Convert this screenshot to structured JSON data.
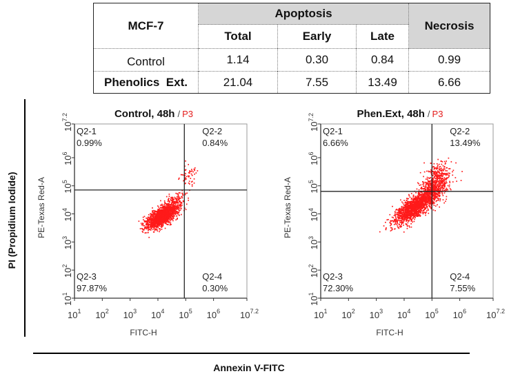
{
  "table": {
    "cell_line": "MCF-7",
    "apoptosis_header": "Apoptosis",
    "necrosis_header": "Necrosis",
    "sub_headers": [
      "Total",
      "Early",
      "Late"
    ],
    "rows": [
      {
        "label": "Control",
        "total": "1.14",
        "early": "0.30",
        "late": "0.84",
        "necrosis": "0.99"
      },
      {
        "label": "Phenolics  Ext.",
        "total": "21.04",
        "early": "7.55",
        "late": "13.49",
        "necrosis": "6.66"
      }
    ]
  },
  "figure": {
    "y_axis_title": "PI (Propidium Iodide)",
    "x_axis_title": "Annexin V-FITC",
    "colors": {
      "dots": "#ff1a1a",
      "gate_label": "#e41b1b",
      "axes": "#333333"
    }
  },
  "chart_data": [
    {
      "type": "scatter",
      "title": "Control, 48h",
      "gate_label": "P3",
      "gate_separator": "/",
      "xlabel": "FITC-H",
      "ylabel": "PE-Texas Red-A",
      "x_scale": "log10",
      "y_scale": "log10",
      "xlim_exponent": [
        1,
        7.2
      ],
      "ylim_exponent": [
        1,
        7.2
      ],
      "x_ticks": [
        {
          "base": "10",
          "exp": "1"
        },
        {
          "base": "10",
          "exp": "2"
        },
        {
          "base": "10",
          "exp": "3"
        },
        {
          "base": "10",
          "exp": "4"
        },
        {
          "base": "10",
          "exp": "5"
        },
        {
          "base": "10",
          "exp": "6"
        },
        {
          "base": "10",
          "exp": "7.2"
        }
      ],
      "y_ticks": [
        {
          "base": "10",
          "exp": "1"
        },
        {
          "base": "10",
          "exp": "2"
        },
        {
          "base": "10",
          "exp": "3"
        },
        {
          "base": "10",
          "exp": "4"
        },
        {
          "base": "10",
          "exp": "5"
        },
        {
          "base": "10",
          "exp": "6"
        },
        {
          "base": "10",
          "exp": "7.2"
        }
      ],
      "gate_x_exponent": 4.95,
      "gate_y_exponent": 4.85,
      "quadrants": [
        {
          "id": "Q2-1",
          "percent": "0.99%",
          "position": "top-left"
        },
        {
          "id": "Q2-2",
          "percent": "0.84%",
          "position": "top-right"
        },
        {
          "id": "Q2-3",
          "percent": "97.87%",
          "position": "bottom-left"
        },
        {
          "id": "Q2-4",
          "percent": "0.30%",
          "position": "bottom-right"
        }
      ],
      "populations": [
        {
          "cx_exp": 4.15,
          "cy_exp": 3.95,
          "sx": 0.28,
          "sy": 0.22,
          "rho": 0.7,
          "n": 1700
        },
        {
          "cx_exp": 5.05,
          "cy_exp": 5.35,
          "sx": 0.17,
          "sy": 0.22,
          "rho": 0.2,
          "n": 55
        },
        {
          "cx_exp": 4.55,
          "cy_exp": 4.45,
          "sx": 0.22,
          "sy": 0.2,
          "rho": 0.6,
          "n": 110
        }
      ],
      "seed": 17
    },
    {
      "type": "scatter",
      "title": "Phen.Ext, 48h",
      "gate_label": "P3",
      "gate_separator": "/",
      "xlabel": "FITC-H",
      "ylabel": "PE-Texas Red-A",
      "x_scale": "log10",
      "y_scale": "log10",
      "xlim_exponent": [
        1,
        7.2
      ],
      "ylim_exponent": [
        1,
        7.2
      ],
      "x_ticks": [
        {
          "base": "10",
          "exp": "1"
        },
        {
          "base": "10",
          "exp": "2"
        },
        {
          "base": "10",
          "exp": "3"
        },
        {
          "base": "10",
          "exp": "4"
        },
        {
          "base": "10",
          "exp": "5"
        },
        {
          "base": "10",
          "exp": "6"
        },
        {
          "base": "10",
          "exp": "7.2"
        }
      ],
      "y_ticks": [
        {
          "base": "10",
          "exp": "1"
        },
        {
          "base": "10",
          "exp": "2"
        },
        {
          "base": "10",
          "exp": "3"
        },
        {
          "base": "10",
          "exp": "4"
        },
        {
          "base": "10",
          "exp": "5"
        },
        {
          "base": "10",
          "exp": "6"
        },
        {
          "base": "10",
          "exp": "7.2"
        }
      ],
      "gate_x_exponent": 5.0,
      "gate_y_exponent": 4.8,
      "quadrants": [
        {
          "id": "Q2-1",
          "percent": "6.66%",
          "position": "top-left"
        },
        {
          "id": "Q2-2",
          "percent": "13.49%",
          "position": "top-right"
        },
        {
          "id": "Q2-3",
          "percent": "72.30%",
          "position": "bottom-left"
        },
        {
          "id": "Q2-4",
          "percent": "7.55%",
          "position": "bottom-right"
        }
      ],
      "populations": [
        {
          "cx_exp": 4.35,
          "cy_exp": 4.25,
          "sx": 0.38,
          "sy": 0.3,
          "rho": 0.75,
          "n": 1500
        },
        {
          "cx_exp": 5.05,
          "cy_exp": 4.95,
          "sx": 0.3,
          "sy": 0.32,
          "rho": 0.55,
          "n": 600
        },
        {
          "cx_exp": 5.15,
          "cy_exp": 5.45,
          "sx": 0.22,
          "sy": 0.2,
          "rho": 0.3,
          "n": 130
        }
      ],
      "seed": 29
    }
  ]
}
